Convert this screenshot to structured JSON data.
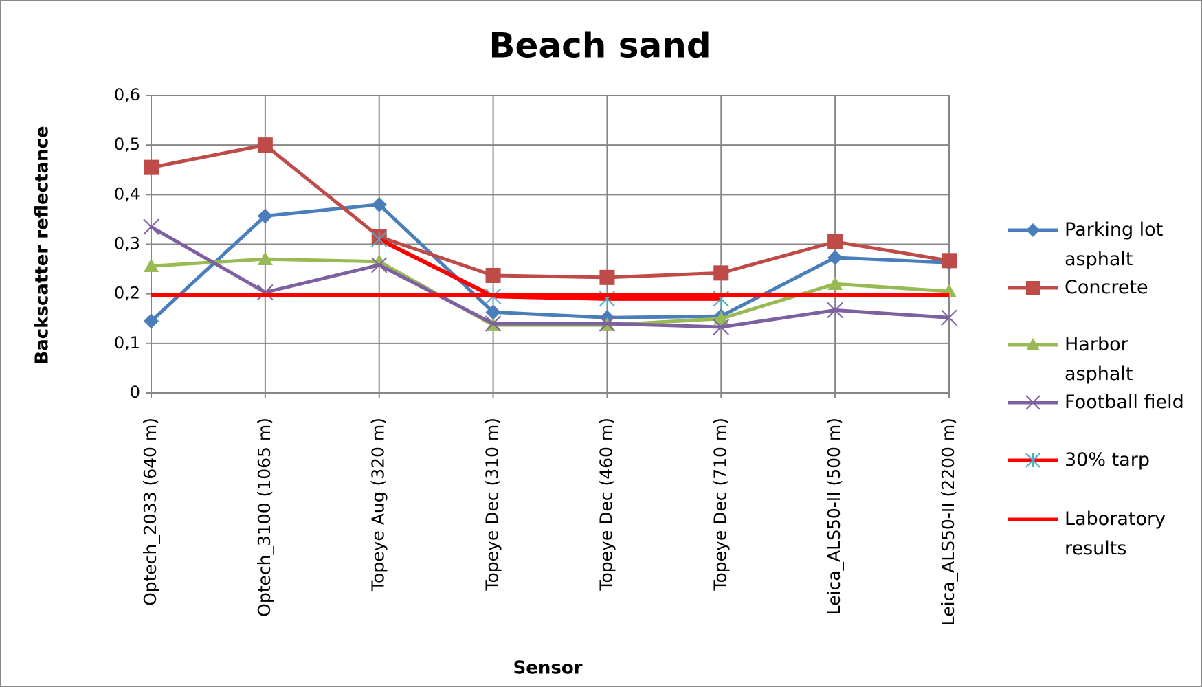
{
  "chart_data": {
    "type": "line",
    "title": "Beach sand",
    "x_label": "Sensor",
    "y_label": "Backscatter reflectance",
    "categories": [
      "Optech_2033 (640 m)",
      "Optech_3100 (1065 m)",
      "Topeye Aug (320 m)",
      "Topeye Dec (310 m)",
      "Topeye Dec (460 m)",
      "Topeye Dec (710 m)",
      "Leica_ALS50-II (500 m)",
      "Leica_ALS50-II (2200 m)"
    ],
    "ylim": [
      0,
      0.6
    ],
    "yticks": [
      0,
      {
        "value": 0.1,
        "label": "0,1"
      },
      {
        "value": 0.2,
        "label": "0,2"
      },
      {
        "value": 0.3,
        "label": "0,3"
      },
      {
        "value": 0.4,
        "label": "0,4"
      },
      {
        "value": 0.5,
        "label": "0,5"
      },
      {
        "value": 0.6,
        "label": "0,6"
      }
    ],
    "grid": true,
    "legend": "right",
    "series": [
      {
        "name": "Parking lot asphalt",
        "color": "#4a7ebb",
        "marker": "diamond",
        "values": [
          0.145,
          0.357,
          0.38,
          0.163,
          0.152,
          0.155,
          0.273,
          0.263
        ]
      },
      {
        "name": "Concrete",
        "color": "#be4b48",
        "marker": "square",
        "values": [
          0.455,
          0.5,
          0.315,
          0.237,
          0.233,
          0.242,
          0.305,
          0.267
        ]
      },
      {
        "name": "Harbor asphalt",
        "color": "#98b954",
        "marker": "triangle",
        "values": [
          0.256,
          0.27,
          0.265,
          0.137,
          0.137,
          0.15,
          0.22,
          0.205
        ]
      },
      {
        "name": "Football field",
        "color": "#7d60a0",
        "marker": "x",
        "values": [
          0.335,
          0.203,
          0.258,
          0.14,
          0.14,
          0.133,
          0.167,
          0.152
        ]
      },
      {
        "name": "30% tarp",
        "color": "#ff0000",
        "marker_color": "#4bacc6",
        "marker": "star",
        "values": [
          null,
          null,
          0.31,
          0.195,
          0.19,
          0.19,
          null,
          null
        ]
      },
      {
        "name": "Laboratory results",
        "color": "#ff0000",
        "marker": "none",
        "values": [
          0.197,
          0.197,
          0.197,
          0.197,
          0.197,
          0.197,
          0.197,
          0.197
        ]
      }
    ]
  }
}
